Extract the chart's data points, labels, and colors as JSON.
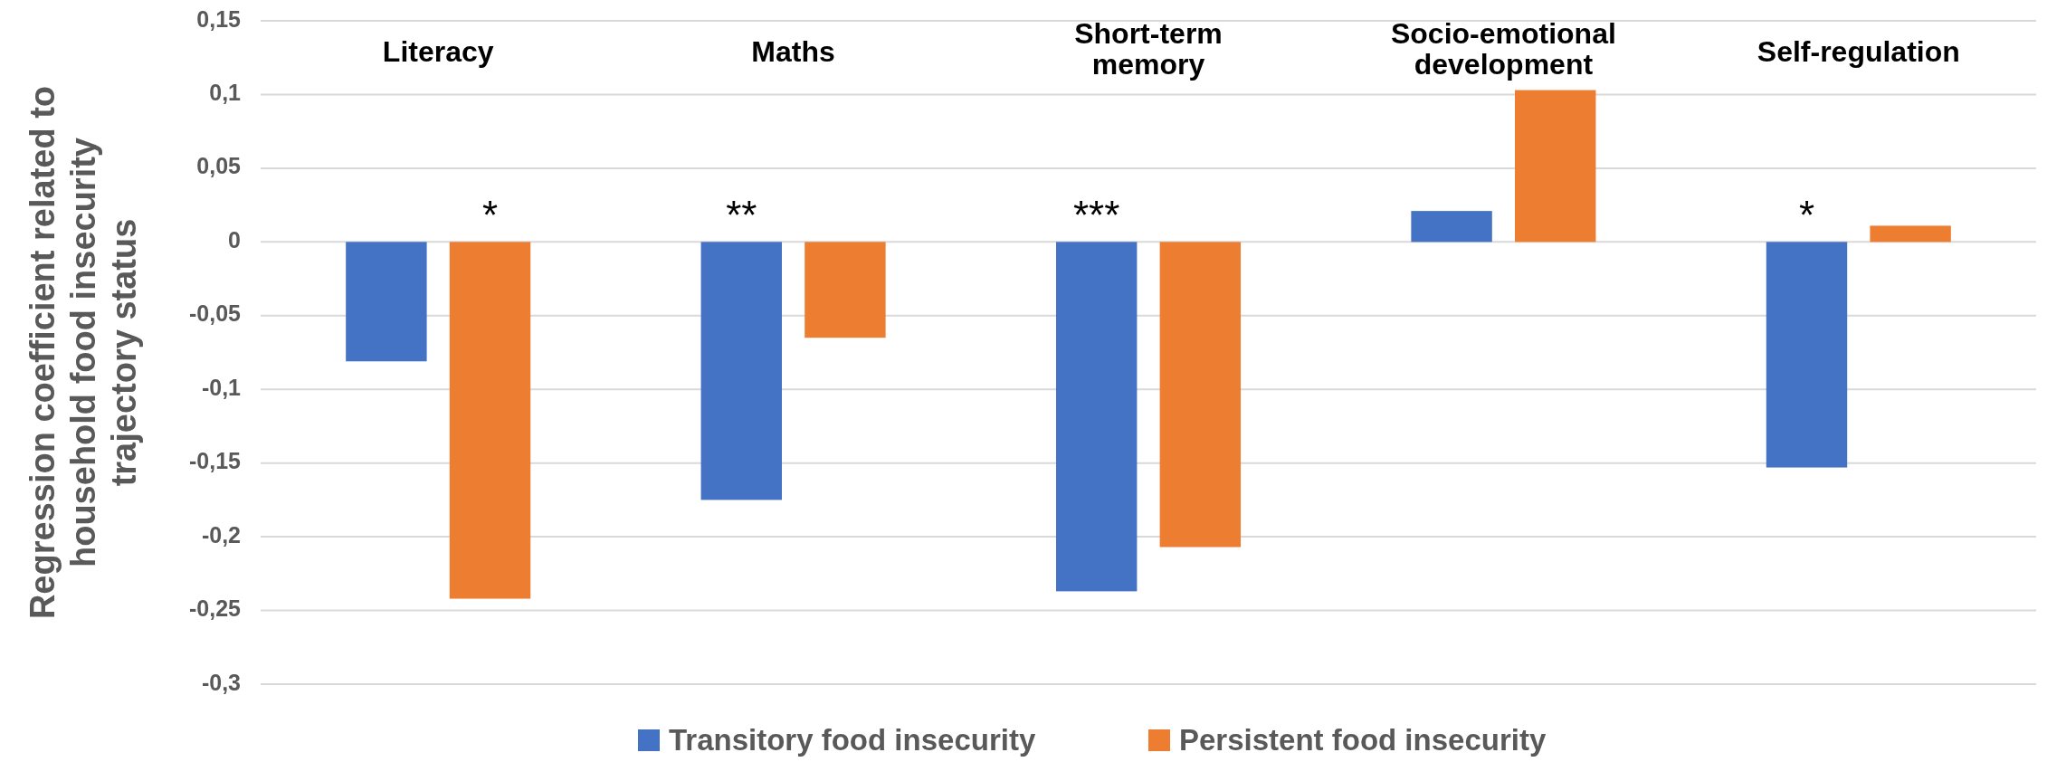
{
  "chart_data": {
    "type": "bar",
    "ylabel": "Regression coefficient related to household food insecurity trajectory status",
    "categories": [
      "Literacy",
      "Maths",
      "Short-term memory",
      "Socio-emotional development",
      "Self-regulation"
    ],
    "series": [
      {
        "name": "Transitory food insecurity",
        "color": "#4472c4",
        "values": [
          -0.081,
          -0.175,
          -0.237,
          0.021,
          -0.153
        ],
        "value_labels": [
          null,
          "**",
          "***",
          null,
          "*"
        ]
      },
      {
        "name": "Persistent food insecurity",
        "color": "#ed7d31",
        "values": [
          -0.242,
          -0.065,
          -0.207,
          0.103,
          0.011
        ],
        "value_labels": [
          "*",
          null,
          null,
          null,
          null
        ]
      }
    ],
    "ylim": [
      -0.3,
      0.15
    ],
    "yticks": [
      {
        "value": -0.3,
        "label": "-0,3"
      },
      {
        "value": -0.25,
        "label": "-0,25"
      },
      {
        "value": -0.2,
        "label": "-0,2"
      },
      {
        "value": -0.15,
        "label": "-0,15"
      },
      {
        "value": -0.1,
        "label": "-0,1"
      },
      {
        "value": -0.05,
        "label": "-0,05"
      },
      0,
      {
        "value": 0.05,
        "label": "0,05"
      },
      {
        "value": 0.1,
        "label": "0,1"
      },
      {
        "value": 0.15,
        "label": "0,15"
      }
    ],
    "grid": "y",
    "legend": "bottom"
  }
}
